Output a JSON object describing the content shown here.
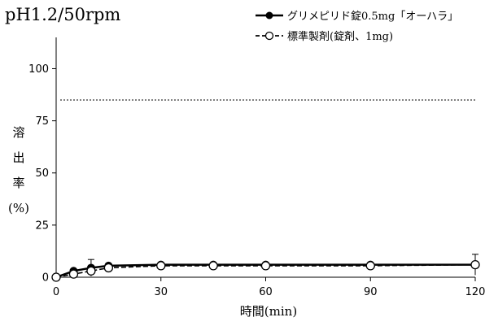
{
  "chart_data": {
    "type": "line",
    "title": "pH1.2/50rpm",
    "xlabel": "時間(min)",
    "ylabel": [
      "溶",
      "出",
      "率",
      "(%)"
    ],
    "xlim": [
      0,
      120
    ],
    "ylim": [
      0,
      115
    ],
    "xticks": [
      0,
      30,
      60,
      90,
      120
    ],
    "yticks": [
      0,
      25,
      50,
      75,
      100
    ],
    "reference_line": 85,
    "legend_position": "top-right",
    "series": [
      {
        "name": "グリメピリド錠0.5mg「オーハラ」",
        "marker": "filled-circle",
        "line": "solid",
        "x": [
          0,
          5,
          10,
          15,
          30,
          45,
          60,
          90,
          120
        ],
        "y": [
          0,
          3,
          4.5,
          5.5,
          6,
          6,
          6,
          6,
          6
        ],
        "error": [
          0,
          0.5,
          4,
          1,
          0.5,
          0.5,
          0.5,
          0.5,
          5
        ]
      },
      {
        "name": "標準製剤(錠剤、1mg)",
        "marker": "open-circle",
        "line": "dashed",
        "x": [
          0,
          5,
          10,
          15,
          30,
          45,
          60,
          90,
          120
        ],
        "y": [
          0,
          1.5,
          3,
          4.5,
          5.5,
          5.5,
          5.5,
          5.5,
          6
        ],
        "error": [
          0,
          0.5,
          1,
          0.5,
          0.5,
          0.5,
          0.5,
          0.5,
          0.5
        ]
      }
    ]
  }
}
